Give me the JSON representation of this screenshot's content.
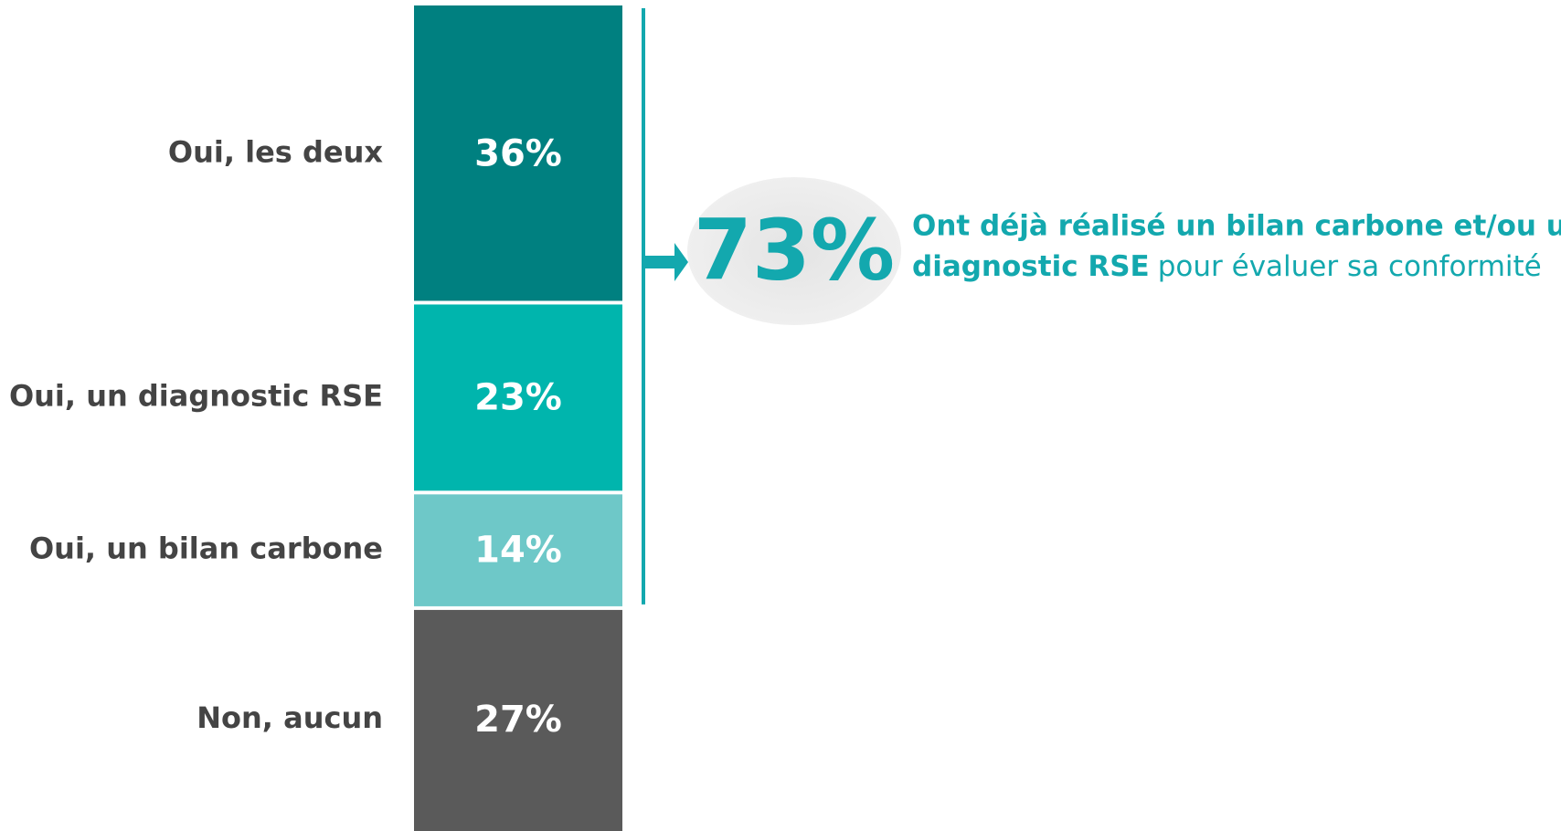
{
  "chart_data": {
    "type": "stacked_bar",
    "categories": [
      "Oui, les deux",
      "Oui, un diagnostic RSE",
      "Oui, un bilan carbone",
      "Non, aucun"
    ],
    "values": [
      36,
      23,
      14,
      27
    ],
    "value_labels": [
      "36%",
      "23%",
      "14%",
      "27%"
    ],
    "colors": [
      "#008080",
      "#00b5ad",
      "#6ec8c8",
      "#5a5a5a"
    ],
    "annotation": {
      "value": 73,
      "value_label": "73%",
      "text_bold": [
        "Ont déjà réalisé un bilan carbone et/ou un",
        "diagnostic RSE"
      ],
      "text": "pour évaluer sa conformité"
    }
  }
}
